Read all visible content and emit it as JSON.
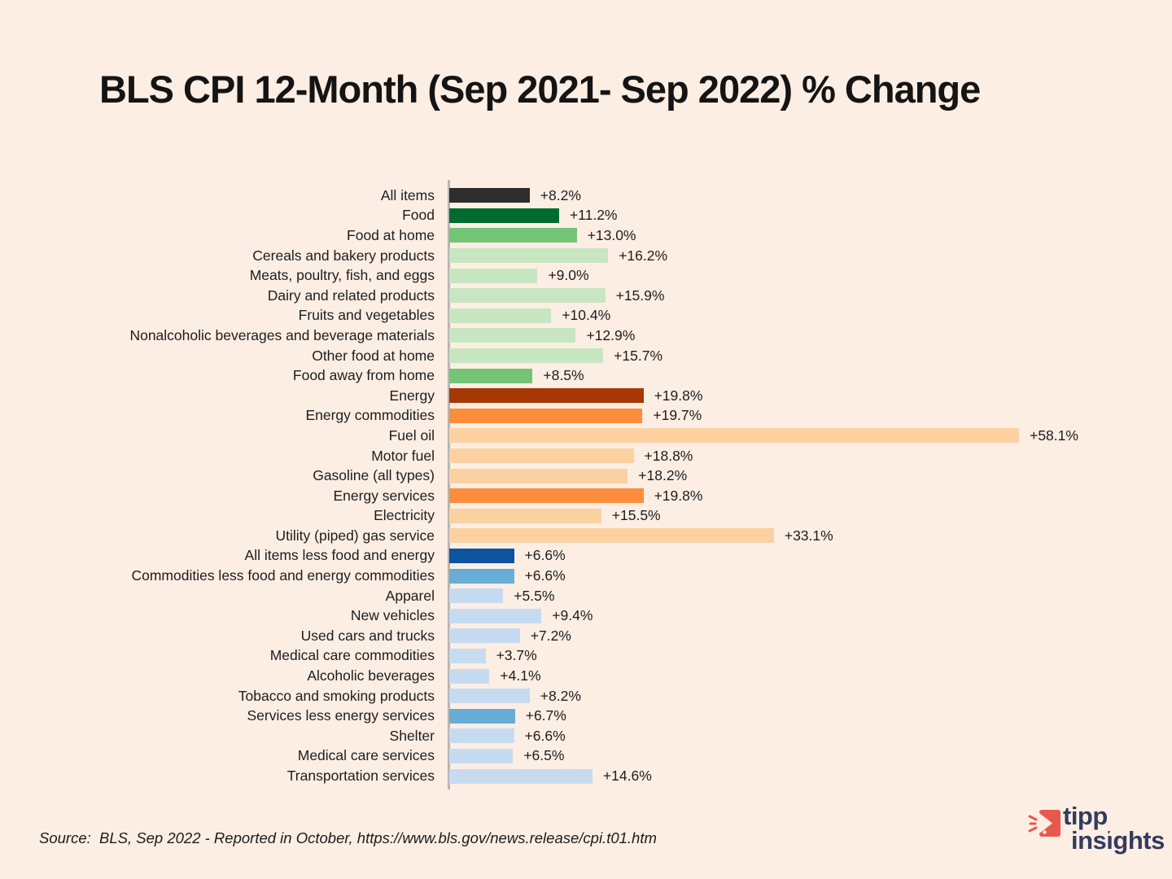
{
  "page": {
    "background_color": "#fdeee4"
  },
  "header": {
    "title": "BLS CPI 12-Month (Sep 2021- Sep 2022) % Change"
  },
  "footer": {
    "source_note": "Source:  BLS, Sep 2022 - Reported in October, https://www.bls.gov/news.release/cpi.t01.htm",
    "logo": {
      "line1": "tipp",
      "line2": "insights",
      "navy": "#343b5e",
      "coral": "#e8584e",
      "icon": "tipp-arrow-icon"
    }
  },
  "palette": {
    "dark": "#2d2d2d",
    "greenDark": "#006b2e",
    "greenMid": "#74c476",
    "greenLight": "#c8e6c1",
    "rust": "#a63806",
    "orange": "#fb8d3d",
    "orangeLight": "#fcd1a2",
    "blueDark": "#0e539f",
    "blueMid": "#68acd8",
    "blueLight": "#c7dbf0",
    "axis": "#b9b6b3",
    "text": "#1d1d1d"
  },
  "chart_data": {
    "type": "bar",
    "orientation": "horizontal",
    "title": "BLS CPI 12-Month (Sep 2021- Sep 2022) % Change",
    "xlabel": "",
    "ylabel": "",
    "value_unit": "percent",
    "xlim": [
      0,
      60
    ],
    "grid": false,
    "legend": false,
    "rows": [
      {
        "category": "All items",
        "value": 8.2,
        "label": "+8.2%",
        "color_key": "dark"
      },
      {
        "category": "Food",
        "value": 11.2,
        "label": "+11.2%",
        "color_key": "greenDark"
      },
      {
        "category": "Food at home",
        "value": 13.0,
        "label": "+13.0%",
        "color_key": "greenMid"
      },
      {
        "category": "Cereals and bakery products",
        "value": 16.2,
        "label": "+16.2%",
        "color_key": "greenLight"
      },
      {
        "category": "Meats, poultry, fish, and eggs",
        "value": 9.0,
        "label": "+9.0%",
        "color_key": "greenLight"
      },
      {
        "category": "Dairy and related products",
        "value": 15.9,
        "label": "+15.9%",
        "color_key": "greenLight"
      },
      {
        "category": "Fruits and vegetables",
        "value": 10.4,
        "label": "+10.4%",
        "color_key": "greenLight"
      },
      {
        "category": "Nonalcoholic beverages and beverage materials",
        "value": 12.9,
        "label": "+12.9%",
        "color_key": "greenLight"
      },
      {
        "category": "Other food at home",
        "value": 15.7,
        "label": "+15.7%",
        "color_key": "greenLight"
      },
      {
        "category": "Food away from home",
        "value": 8.5,
        "label": "+8.5%",
        "color_key": "greenMid"
      },
      {
        "category": "Energy",
        "value": 19.8,
        "label": "+19.8%",
        "color_key": "rust"
      },
      {
        "category": "Energy commodities",
        "value": 19.7,
        "label": "+19.7%",
        "color_key": "orange"
      },
      {
        "category": "Fuel oil",
        "value": 58.1,
        "label": "+58.1%",
        "color_key": "orangeLight"
      },
      {
        "category": "Motor fuel",
        "value": 18.8,
        "label": "+18.8%",
        "color_key": "orangeLight"
      },
      {
        "category": "Gasoline (all types)",
        "value": 18.2,
        "label": "+18.2%",
        "color_key": "orangeLight"
      },
      {
        "category": "Energy services",
        "value": 19.8,
        "label": "+19.8%",
        "color_key": "orange"
      },
      {
        "category": "Electricity",
        "value": 15.5,
        "label": "+15.5%",
        "color_key": "orangeLight"
      },
      {
        "category": "Utility (piped) gas service",
        "value": 33.1,
        "label": "+33.1%",
        "color_key": "orangeLight"
      },
      {
        "category": "All items less food and energy",
        "value": 6.6,
        "label": "+6.6%",
        "color_key": "blueDark"
      },
      {
        "category": "Commodities less food and energy commodities",
        "value": 6.6,
        "label": "+6.6%",
        "color_key": "blueMid"
      },
      {
        "category": "Apparel",
        "value": 5.5,
        "label": "+5.5%",
        "color_key": "blueLight"
      },
      {
        "category": "New vehicles",
        "value": 9.4,
        "label": "+9.4%",
        "color_key": "blueLight"
      },
      {
        "category": "Used cars and trucks",
        "value": 7.2,
        "label": "+7.2%",
        "color_key": "blueLight"
      },
      {
        "category": "Medical care commodities",
        "value": 3.7,
        "label": "+3.7%",
        "color_key": "blueLight"
      },
      {
        "category": "Alcoholic beverages",
        "value": 4.1,
        "label": "+4.1%",
        "color_key": "blueLight"
      },
      {
        "category": "Tobacco and smoking products",
        "value": 8.2,
        "label": "+8.2%",
        "color_key": "blueLight"
      },
      {
        "category": "Services less energy services",
        "value": 6.7,
        "label": "+6.7%",
        "color_key": "blueMid"
      },
      {
        "category": "Shelter",
        "value": 6.6,
        "label": "+6.6%",
        "color_key": "blueLight"
      },
      {
        "category": "Medical care services",
        "value": 6.5,
        "label": "+6.5%",
        "color_key": "blueLight"
      },
      {
        "category": "Transportation services",
        "value": 14.6,
        "label": "+14.6%",
        "color_key": "blueLight"
      }
    ]
  }
}
